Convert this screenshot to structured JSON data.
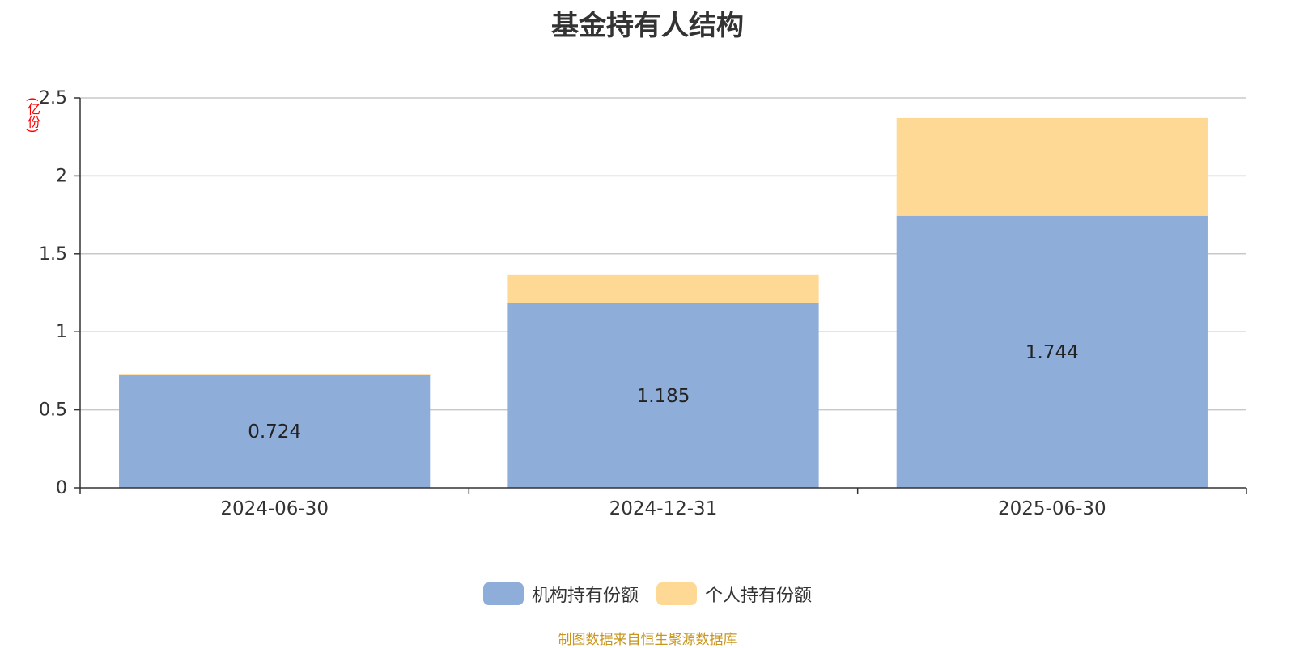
{
  "chart_data": {
    "type": "bar",
    "stacked": true,
    "title": "基金持有人结构",
    "unit_label": "(亿份)",
    "categories": [
      "2024-06-30",
      "2024-12-31",
      "2025-06-30"
    ],
    "series": [
      {
        "name": "机构持有份额",
        "color": "#8eadd9",
        "values": [
          0.724,
          1.185,
          1.744
        ],
        "labels": [
          "0.724",
          "1.185",
          "1.744"
        ]
      },
      {
        "name": "个人持有份额",
        "color": "#fed995",
        "values": [
          0.006,
          0.18,
          0.627
        ]
      }
    ],
    "ylim": [
      0,
      2.5
    ],
    "yticks": [
      "0",
      "0.5",
      "1",
      "1.5",
      "2",
      "2.5"
    ],
    "grid": true,
    "legend_position": "bottom-center"
  },
  "footer": {
    "source": "制图数据来自恒生聚源数据库"
  }
}
